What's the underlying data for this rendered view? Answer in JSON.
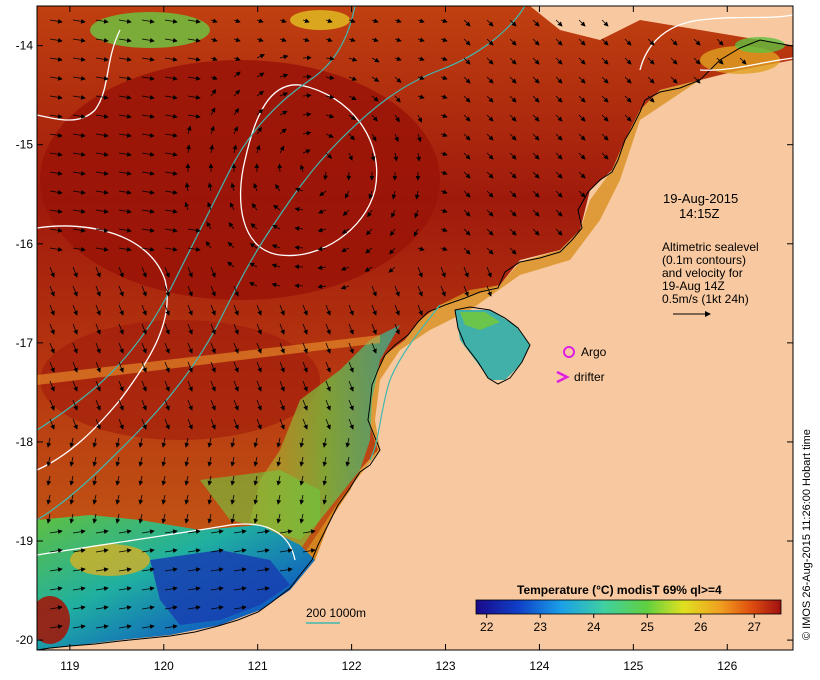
{
  "map": {
    "type": "sea-surface-temperature-map",
    "x_axis": {
      "ticks": [
        "119",
        "120",
        "121",
        "122",
        "123",
        "124",
        "125",
        "126"
      ]
    },
    "y_axis": {
      "ticks": [
        "-14",
        "-15",
        "-16",
        "-17",
        "-18",
        "-19",
        "-20"
      ]
    },
    "lon_range": [
      118.65,
      126.7
    ],
    "lat_range": [
      -13.6,
      -20.1
    ],
    "colors": {
      "land": "#f8c9a0",
      "coastline": "#000000",
      "sealevel_contour": "#ffffff",
      "isobath": "#40b8b0",
      "argo": "#e020e0",
      "drifter": "#e020e0",
      "warm_sst": "#a21a0c",
      "cool_sst": "#1040a0"
    }
  },
  "annotations": {
    "date": "19-Aug-2015",
    "time": "14:15Z",
    "altimetry_lines": [
      "Altimetric sealevel",
      "(0.1m contours)",
      "and velocity for",
      "19-Aug 14Z",
      "0.5m/s (1kt 24h)"
    ]
  },
  "legend": {
    "argo_label": "Argo",
    "drifter_label": "drifter",
    "isobath_label": "200  1000m"
  },
  "colorbar": {
    "title": "Temperature (°C) modisT 69% ql>=4",
    "ticks": [
      "22",
      "23",
      "24",
      "25",
      "26",
      "27"
    ],
    "range": [
      21.8,
      27.5
    ],
    "stops": [
      "#1a0a8a",
      "#0f40c8",
      "#1aa0e8",
      "#40d0a0",
      "#60d040",
      "#e0e020",
      "#f0a020",
      "#e05010",
      "#a01010"
    ]
  },
  "credit": "© IMOS 26-Aug-2015 11:26:00 Hobart time"
}
